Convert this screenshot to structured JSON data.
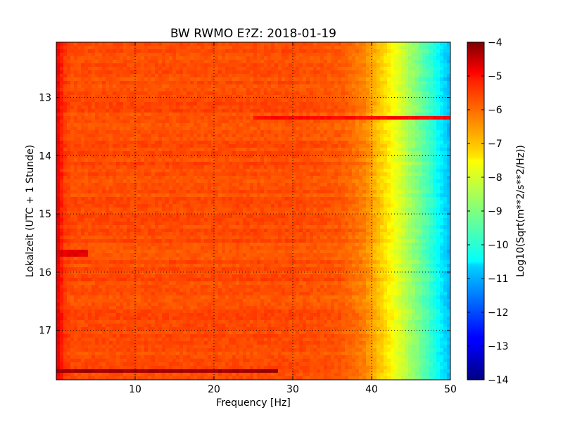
{
  "chart_data": {
    "type": "heatmap",
    "title": "BW RWMO E?Z: 2018-01-19",
    "xlabel": "Frequency [Hz]",
    "ylabel": "Lokalzeit (UTC + 1 Stunde)",
    "xlim": [
      0,
      50
    ],
    "ylim": [
      12.05,
      17.85
    ],
    "y_inverted": true,
    "x_ticks": [
      10,
      20,
      30,
      40,
      50
    ],
    "x_tick_labels": [
      "10",
      "20",
      "30",
      "40",
      "50"
    ],
    "y_ticks": [
      13,
      14,
      15,
      16,
      17
    ],
    "y_tick_labels": [
      "13",
      "14",
      "15",
      "16",
      "17"
    ],
    "grid": true,
    "colormap": "jet",
    "colorbar": {
      "label": "Log10(Sqrt(m**2/s**2/Hz))",
      "range": [
        -14,
        -4
      ],
      "ticks": [
        -4,
        -5,
        -6,
        -7,
        -8,
        -9,
        -10,
        -11,
        -12,
        -13,
        -14
      ],
      "tick_labels": [
        "−4",
        "−5",
        "−6",
        "−7",
        "−8",
        "−9",
        "−10",
        "−11",
        "−12",
        "−13",
        "−14"
      ]
    },
    "frequency_profile": {
      "frequency_hz": [
        0,
        0.5,
        1,
        2,
        10,
        20,
        30,
        36,
        39,
        41,
        43,
        45,
        47,
        49,
        50
      ],
      "value_log10": [
        -5.0,
        -5.4,
        -5.8,
        -6.0,
        -6.0,
        -6.0,
        -6.0,
        -6.1,
        -6.5,
        -7.2,
        -7.9,
        -8.7,
        -9.5,
        -10.5,
        -11.0
      ]
    },
    "features": [
      {
        "time": 17.68,
        "freq_range": [
          0,
          28
        ],
        "value_log10": -4.3
      },
      {
        "time": 13.35,
        "freq_range": [
          25,
          50
        ],
        "value_log10": -5.3
      },
      {
        "time": 15.68,
        "freq_range": [
          0,
          4
        ],
        "value_log10": -5.0
      }
    ]
  }
}
